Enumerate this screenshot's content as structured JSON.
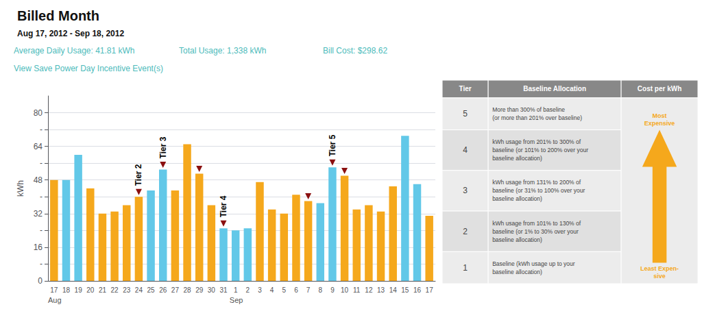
{
  "chart_data": {
    "type": "bar",
    "title": "Billed Month",
    "subtitle": "Aug 17, 2012 - Sep 18, 2012",
    "annotations": [
      {
        "text": "Average Daily Usage: 41.81 kWh",
        "color": "#4DBBBB"
      },
      {
        "text": "Total Usage: 1,338 kWh",
        "color": "#4DBBBB"
      },
      {
        "text": "Bill Cost: $298.62",
        "color": "#4DBBBB"
      },
      {
        "text": "View Save Power Day Incentive Event(s)",
        "color": "#4DBBBB"
      }
    ],
    "ylabel": "kWh",
    "categories": [
      "17",
      "18",
      "19",
      "20",
      "21",
      "22",
      "23",
      "24",
      "25",
      "26",
      "27",
      "28",
      "29",
      "30",
      "31",
      "1",
      "2",
      "3",
      "4",
      "5",
      "6",
      "7",
      "8",
      "9",
      "10",
      "11",
      "12",
      "13",
      "14",
      "15",
      "16",
      "17"
    ],
    "month_labels": [
      {
        "text": "Aug",
        "at": 0
      },
      {
        "text": "Sep",
        "at": 15
      }
    ],
    "values": [
      48,
      48,
      60,
      44,
      32,
      33,
      36,
      40,
      43,
      53,
      43,
      65,
      51,
      36,
      25,
      24,
      25,
      47,
      34,
      32,
      41,
      38,
      37,
      54,
      50,
      34,
      36,
      33,
      45,
      69,
      46,
      31
    ],
    "colors": [
      "#F5A81C",
      "#62C8E8",
      "#62C8E8",
      "#F5A81C",
      "#F5A81C",
      "#F5A81C",
      "#F5A81C",
      "#F5A81C",
      "#62C8E8",
      "#62C8E8",
      "#F5A81C",
      "#F5A81C",
      "#F5A81C",
      "#F5A81C",
      "#62C8E8",
      "#62C8E8",
      "#62C8E8",
      "#F5A81C",
      "#F5A81C",
      "#F5A81C",
      "#F5A81C",
      "#F5A81C",
      "#62C8E8",
      "#62C8E8",
      "#F5A81C",
      "#F5A81C",
      "#F5A81C",
      "#F5A81C",
      "#F5A81C",
      "#62C8E8",
      "#62C8E8",
      "#F5A81C"
    ],
    "ylim": [
      0,
      88
    ],
    "yticks": [
      0,
      {
        "value": 8,
        "label": "-"
      },
      16,
      {
        "value": 24,
        "label": "-"
      },
      32,
      {
        "value": 40,
        "label": "-"
      },
      48,
      {
        "value": 56,
        "label": "-"
      },
      64,
      {
        "value": 72,
        "label": "-"
      },
      80
    ],
    "grid": true,
    "tier_markers": {
      "marker": "triangle-down",
      "color": "#8B1010",
      "at": [
        7,
        9,
        12,
        14,
        21,
        23,
        24
      ]
    },
    "tier_labels": [
      {
        "text": "Tier 2",
        "at": 7
      },
      {
        "text": "Tier 3",
        "at": 9
      },
      {
        "text": "Tier 4",
        "at": 14
      },
      {
        "text": "Tier 5",
        "at": 23
      }
    ],
    "table": {
      "columns": [
        "Tier",
        "Baseline Allocation",
        "Cost per kWh"
      ],
      "color": "#888888",
      "rows": [
        [
          "5",
          "More than 300% of baseline\n(or more than 201% over baseline)"
        ],
        [
          "4",
          "kWh usage from 201% to 300% of\nbaseline (or 101% to 200% over your\nbaseline allocation)"
        ],
        [
          "3",
          "kWh usage from 131% to 200% of\nbaseline (or 31% to 100% over your\nbaseline allocation)"
        ],
        [
          "2",
          "kWh usage from 101% to 130% of\nbaseline (or 1% to 30% over your\nbaseline allocation)"
        ],
        [
          "1",
          "Baseline (kWh usage up to your\nbaseline allocation)"
        ]
      ],
      "colors": [
        "#ececec",
        "#e0e0e0",
        "#ececec",
        "#e0e0e0",
        "#ececec"
      ]
    },
    "cost_arrow": {
      "color": "#F5A81C",
      "top": "Most\nExpensive",
      "bottom": "Least Expen-\nsive"
    }
  }
}
